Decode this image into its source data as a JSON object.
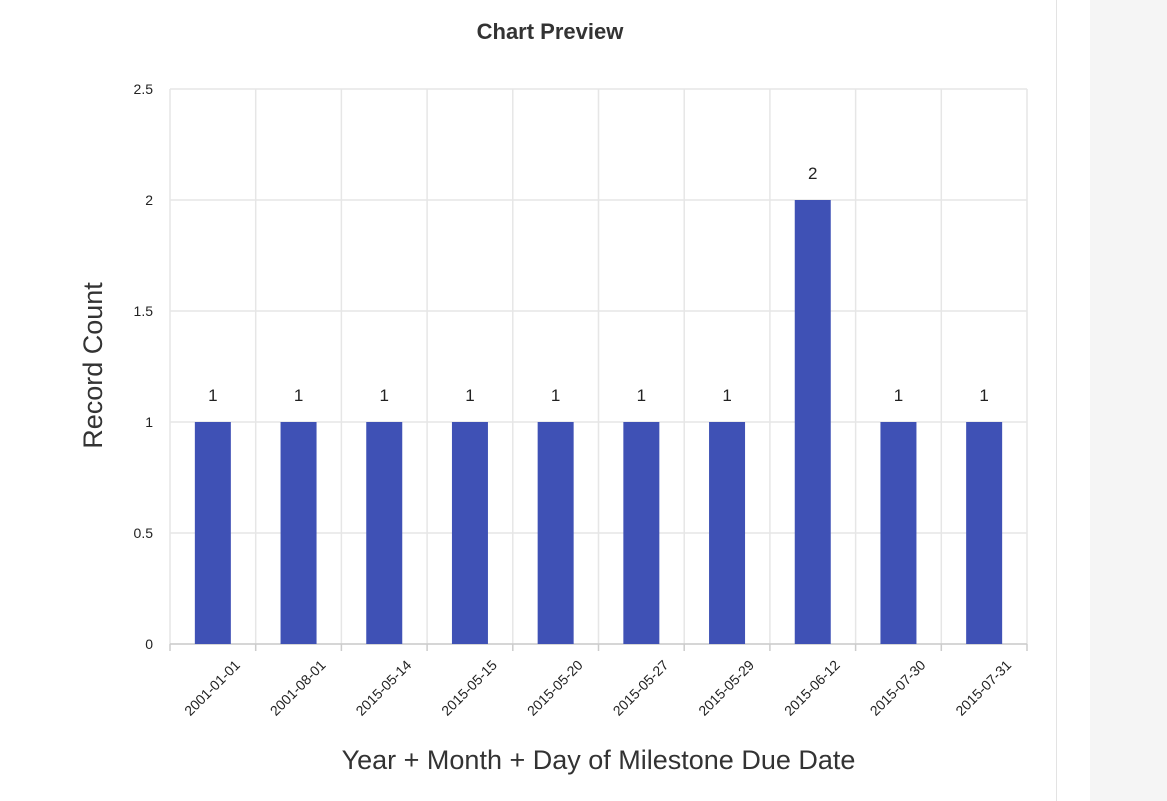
{
  "chart_data": {
    "type": "bar",
    "title": "Chart Preview",
    "xlabel": "Year + Month + Day of Milestone Due Date",
    "ylabel": "Record Count",
    "categories": [
      "2001-01-01",
      "2001-08-01",
      "2015-05-14",
      "2015-05-15",
      "2015-05-20",
      "2015-05-27",
      "2015-05-29",
      "2015-06-12",
      "2015-07-30",
      "2015-07-31"
    ],
    "values": [
      1,
      1,
      1,
      1,
      1,
      1,
      1,
      2,
      1,
      1
    ],
    "ylim": [
      0,
      2.5
    ],
    "yticks": [
      "0",
      "0.5",
      "1",
      "1.5",
      "2",
      "2.5"
    ],
    "grid": true,
    "bar_color": "#3f51b5",
    "show_data_labels": true
  }
}
